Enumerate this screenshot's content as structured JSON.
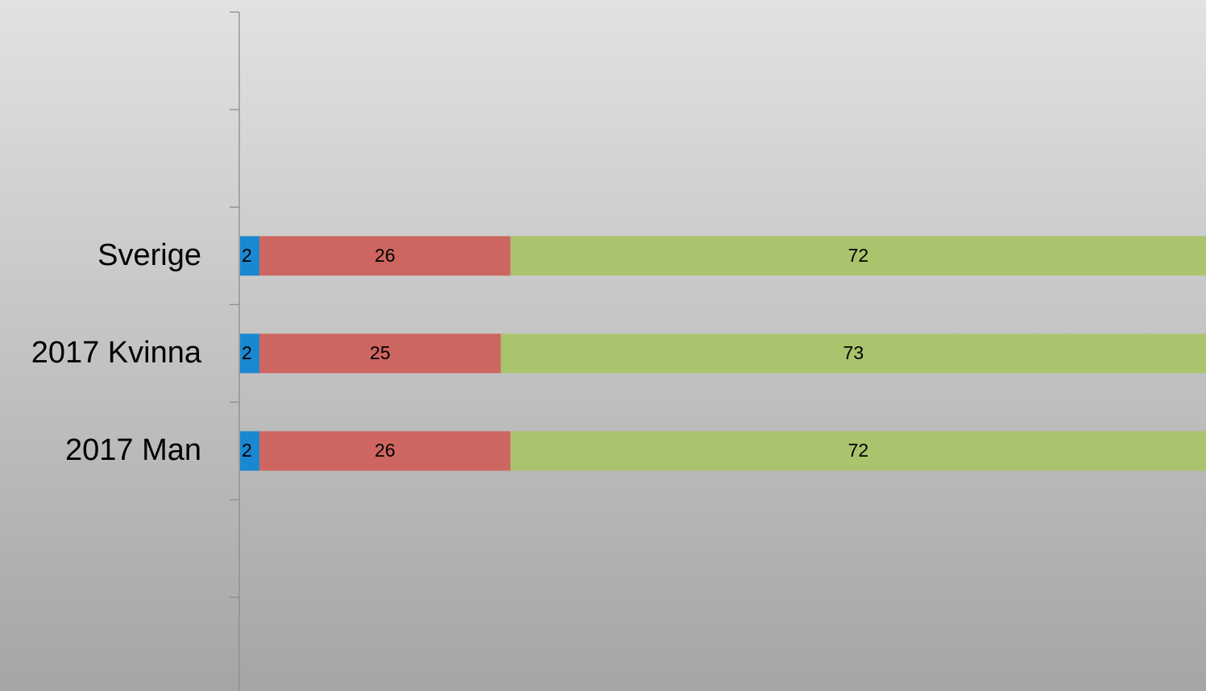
{
  "chart_data": {
    "type": "stacked_bar_horizontal",
    "categories": [
      null,
      null,
      "Sverige",
      "2017 Kvinna",
      "2017 Man",
      null,
      null
    ],
    "series": [
      {
        "color": "#1a88d0",
        "values": [
          null,
          null,
          2,
          2,
          2,
          null,
          null
        ]
      },
      {
        "color": "#cd6660",
        "values": [
          null,
          null,
          26,
          25,
          26,
          null,
          null
        ]
      },
      {
        "color": "#a9c46c",
        "values": [
          null,
          null,
          72,
          73,
          72,
          null,
          null
        ]
      }
    ],
    "xlim": [
      0,
      100
    ]
  }
}
